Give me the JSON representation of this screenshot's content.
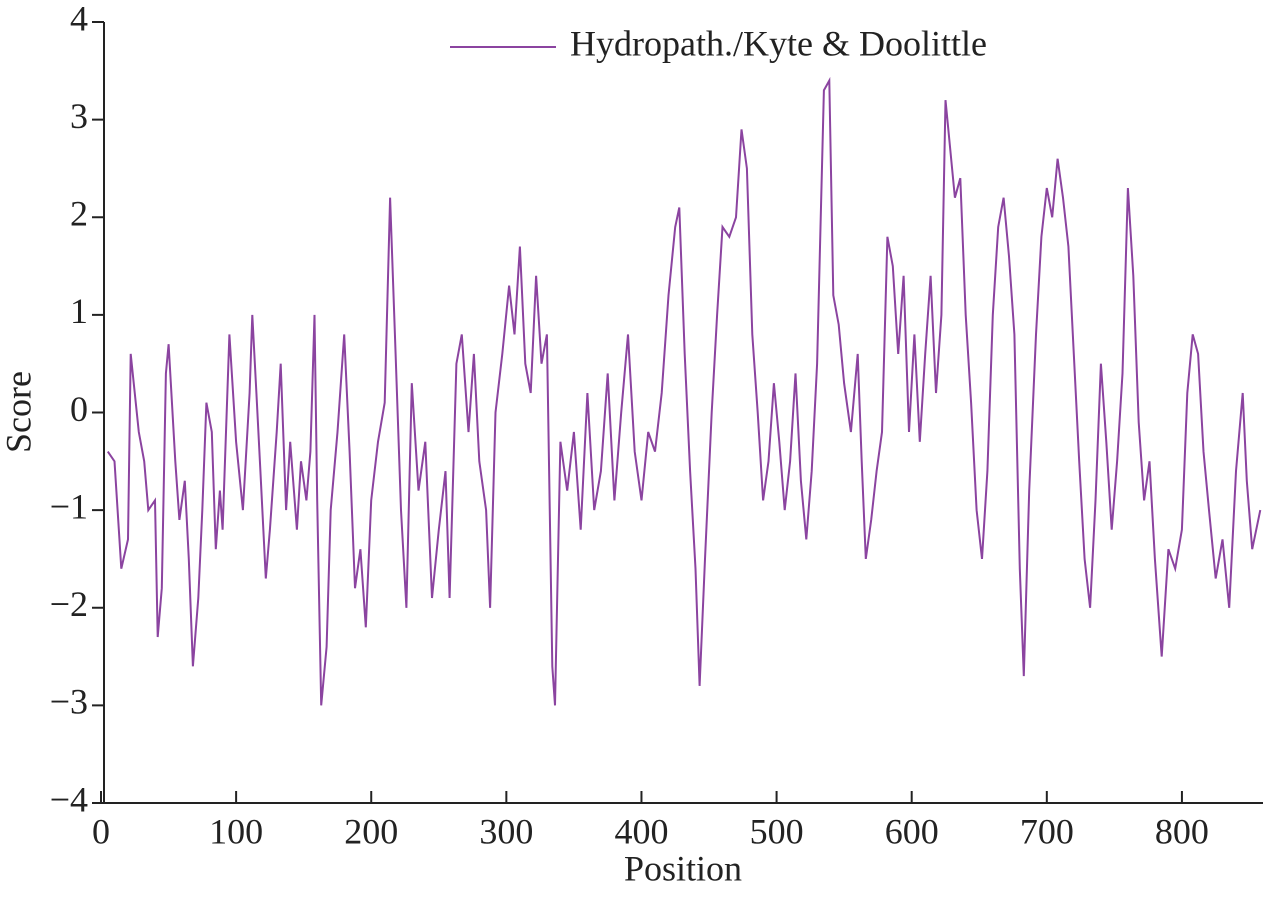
{
  "chart_data": {
    "type": "line",
    "x_label": "Position",
    "y_label": "Score",
    "xlim": [
      0,
      860
    ],
    "ylim": [
      -4,
      4
    ],
    "xticks": [
      0,
      100,
      200,
      300,
      400,
      500,
      600,
      700,
      800
    ],
    "yticks": [
      {
        "value": -4,
        "label": "−4"
      },
      {
        "value": -3,
        "label": "−3"
      },
      {
        "value": -2,
        "label": "−2"
      },
      {
        "value": -1,
        "label": "−1"
      },
      0,
      1,
      2,
      3,
      4
    ],
    "legend": "upper right",
    "x": [
      5,
      10,
      15,
      20,
      22,
      28,
      32,
      35,
      40,
      42,
      45,
      48,
      50,
      55,
      58,
      62,
      65,
      68,
      72,
      75,
      78,
      82,
      85,
      88,
      90,
      95,
      100,
      105,
      110,
      112,
      115,
      118,
      122,
      125,
      130,
      133,
      137,
      140,
      145,
      148,
      152,
      155,
      158,
      160,
      163,
      167,
      170,
      175,
      180,
      184,
      188,
      192,
      196,
      200,
      205,
      210,
      214,
      218,
      222,
      226,
      230,
      235,
      240,
      245,
      250,
      255,
      258,
      263,
      267,
      272,
      276,
      280,
      285,
      288,
      292,
      297,
      302,
      306,
      310,
      314,
      318,
      322,
      326,
      330,
      334,
      336,
      340,
      345,
      350,
      355,
      360,
      365,
      370,
      375,
      380,
      385,
      390,
      395,
      400,
      405,
      410,
      415,
      420,
      425,
      428,
      432,
      436,
      440,
      443,
      447,
      452,
      456,
      460,
      465,
      470,
      474,
      478,
      482,
      486,
      490,
      494,
      498,
      502,
      506,
      510,
      514,
      518,
      522,
      526,
      530,
      535,
      539,
      542,
      546,
      550,
      555,
      560,
      563,
      566,
      570,
      574,
      578,
      582,
      586,
      590,
      594,
      598,
      602,
      606,
      610,
      614,
      618,
      622,
      625,
      632,
      636,
      640,
      644,
      648,
      652,
      656,
      660,
      664,
      668,
      672,
      676,
      680,
      683,
      687,
      692,
      696,
      700,
      704,
      708,
      712,
      716,
      720,
      724,
      728,
      732,
      736,
      740,
      744,
      748,
      752,
      756,
      760,
      764,
      768,
      772,
      776,
      780,
      785,
      790,
      795,
      800,
      804,
      808,
      812,
      816,
      820,
      825,
      830,
      835,
      840,
      845,
      848,
      852,
      858
    ],
    "series": [
      {
        "name": "Hydropath./Kyte & Doolittle",
        "color": "#8b44a0",
        "values": [
          -0.4,
          -0.5,
          -1.6,
          -1.3,
          0.6,
          -0.2,
          -0.5,
          -1.0,
          -0.9,
          -2.3,
          -1.8,
          0.4,
          0.7,
          -0.5,
          -1.1,
          -0.7,
          -1.5,
          -2.6,
          -1.9,
          -1.0,
          0.1,
          -0.2,
          -1.4,
          -0.8,
          -1.2,
          0.8,
          -0.3,
          -1.0,
          0.2,
          1.0,
          0.2,
          -0.6,
          -1.7,
          -1.2,
          -0.2,
          0.5,
          -1.0,
          -0.3,
          -1.2,
          -0.5,
          -0.9,
          -0.4,
          1.0,
          -0.9,
          -3.0,
          -2.4,
          -1.0,
          -0.2,
          0.8,
          -0.4,
          -1.8,
          -1.4,
          -2.2,
          -0.9,
          -0.3,
          0.1,
          2.2,
          0.6,
          -1.0,
          -2.0,
          0.3,
          -0.8,
          -0.3,
          -1.9,
          -1.2,
          -0.6,
          -1.9,
          0.5,
          0.8,
          -0.2,
          0.6,
          -0.5,
          -1.0,
          -2.0,
          0.0,
          0.6,
          1.3,
          0.8,
          1.7,
          0.5,
          0.2,
          1.4,
          0.5,
          0.8,
          -2.6,
          -3.0,
          -0.3,
          -0.8,
          -0.2,
          -1.2,
          0.2,
          -1.0,
          -0.6,
          0.4,
          -0.9,
          0.0,
          0.8,
          -0.4,
          -0.9,
          -0.2,
          -0.4,
          0.2,
          1.2,
          1.9,
          2.1,
          0.6,
          -0.6,
          -1.6,
          -2.8,
          -1.5,
          0.0,
          1.0,
          1.9,
          1.8,
          2.0,
          2.9,
          2.5,
          0.8,
          0.0,
          -0.9,
          -0.5,
          0.3,
          -0.3,
          -1.0,
          -0.5,
          0.4,
          -0.7,
          -1.3,
          -0.6,
          0.5,
          3.3,
          3.4,
          1.2,
          0.9,
          0.3,
          -0.2,
          0.6,
          -0.5,
          -1.5,
          -1.1,
          -0.6,
          -0.2,
          1.8,
          1.5,
          0.6,
          1.4,
          -0.2,
          0.8,
          -0.3,
          0.6,
          1.4,
          0.2,
          1.0,
          3.2,
          2.2,
          2.4,
          1.0,
          0.1,
          -1.0,
          -1.5,
          -0.6,
          1.0,
          1.9,
          2.2,
          1.6,
          0.8,
          -1.6,
          -2.7,
          -0.8,
          0.8,
          1.8,
          2.3,
          2.0,
          2.6,
          2.2,
          1.7,
          0.6,
          -0.5,
          -1.5,
          -2.0,
          -0.9,
          0.5,
          -0.3,
          -1.2,
          -0.5,
          0.4,
          2.3,
          1.4,
          -0.1,
          -0.9,
          -0.5,
          -1.5,
          -2.5,
          -1.4,
          -1.6,
          -1.2,
          0.2,
          0.8,
          0.6,
          -0.4,
          -1.0,
          -1.7,
          -1.3,
          -2.0,
          -0.6,
          0.2,
          -0.7,
          -1.4,
          -1.0
        ]
      }
    ]
  }
}
